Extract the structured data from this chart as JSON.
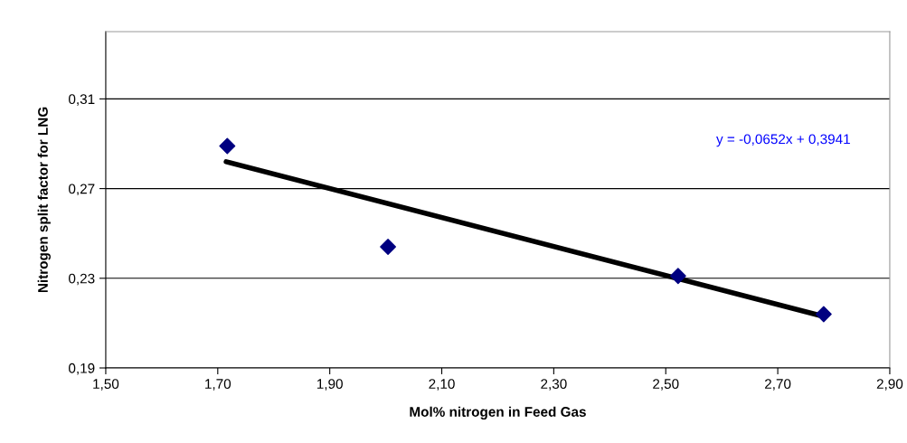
{
  "chart_data": {
    "type": "scatter",
    "xlabel": "Mol% nitrogen in Feed Gas",
    "ylabel": "Nitrogen split factor for LNG",
    "series": [
      {
        "color": "#000080",
        "marker": "diamond",
        "x": [
          1.717,
          2.004,
          2.522,
          2.782
        ],
        "values": [
          0.289,
          0.244,
          0.231,
          0.214
        ]
      },
      {
        "type": "line",
        "color": "#000000",
        "marker": "none",
        "x": [
          1.715,
          2.782
        ],
        "values": [
          0.282,
          0.213
        ]
      }
    ],
    "annotations": [
      "y = -0,0652x + 0,3941"
    ],
    "xlim": [
      1.5,
      2.9
    ],
    "ylim": [
      0.19,
      0.34
    ],
    "xticks": [
      {
        "value": 1.5,
        "label": "1,50"
      },
      {
        "value": 1.7,
        "label": "1,70"
      },
      {
        "value": 1.9,
        "label": "1,90"
      },
      {
        "value": 2.1,
        "label": "2,10"
      },
      {
        "value": 2.3,
        "label": "2,30"
      },
      {
        "value": 2.5,
        "label": "2,50"
      },
      {
        "value": 2.7,
        "label": "2,70"
      },
      {
        "value": 2.9,
        "label": "2,90"
      }
    ],
    "yticks": [
      {
        "value": 0.19,
        "label": "0,19"
      },
      {
        "value": 0.23,
        "label": "0,23"
      },
      {
        "value": 0.27,
        "label": "0,27"
      },
      {
        "value": 0.31,
        "label": "0,31"
      }
    ],
    "grid": "y",
    "legend": false
  }
}
